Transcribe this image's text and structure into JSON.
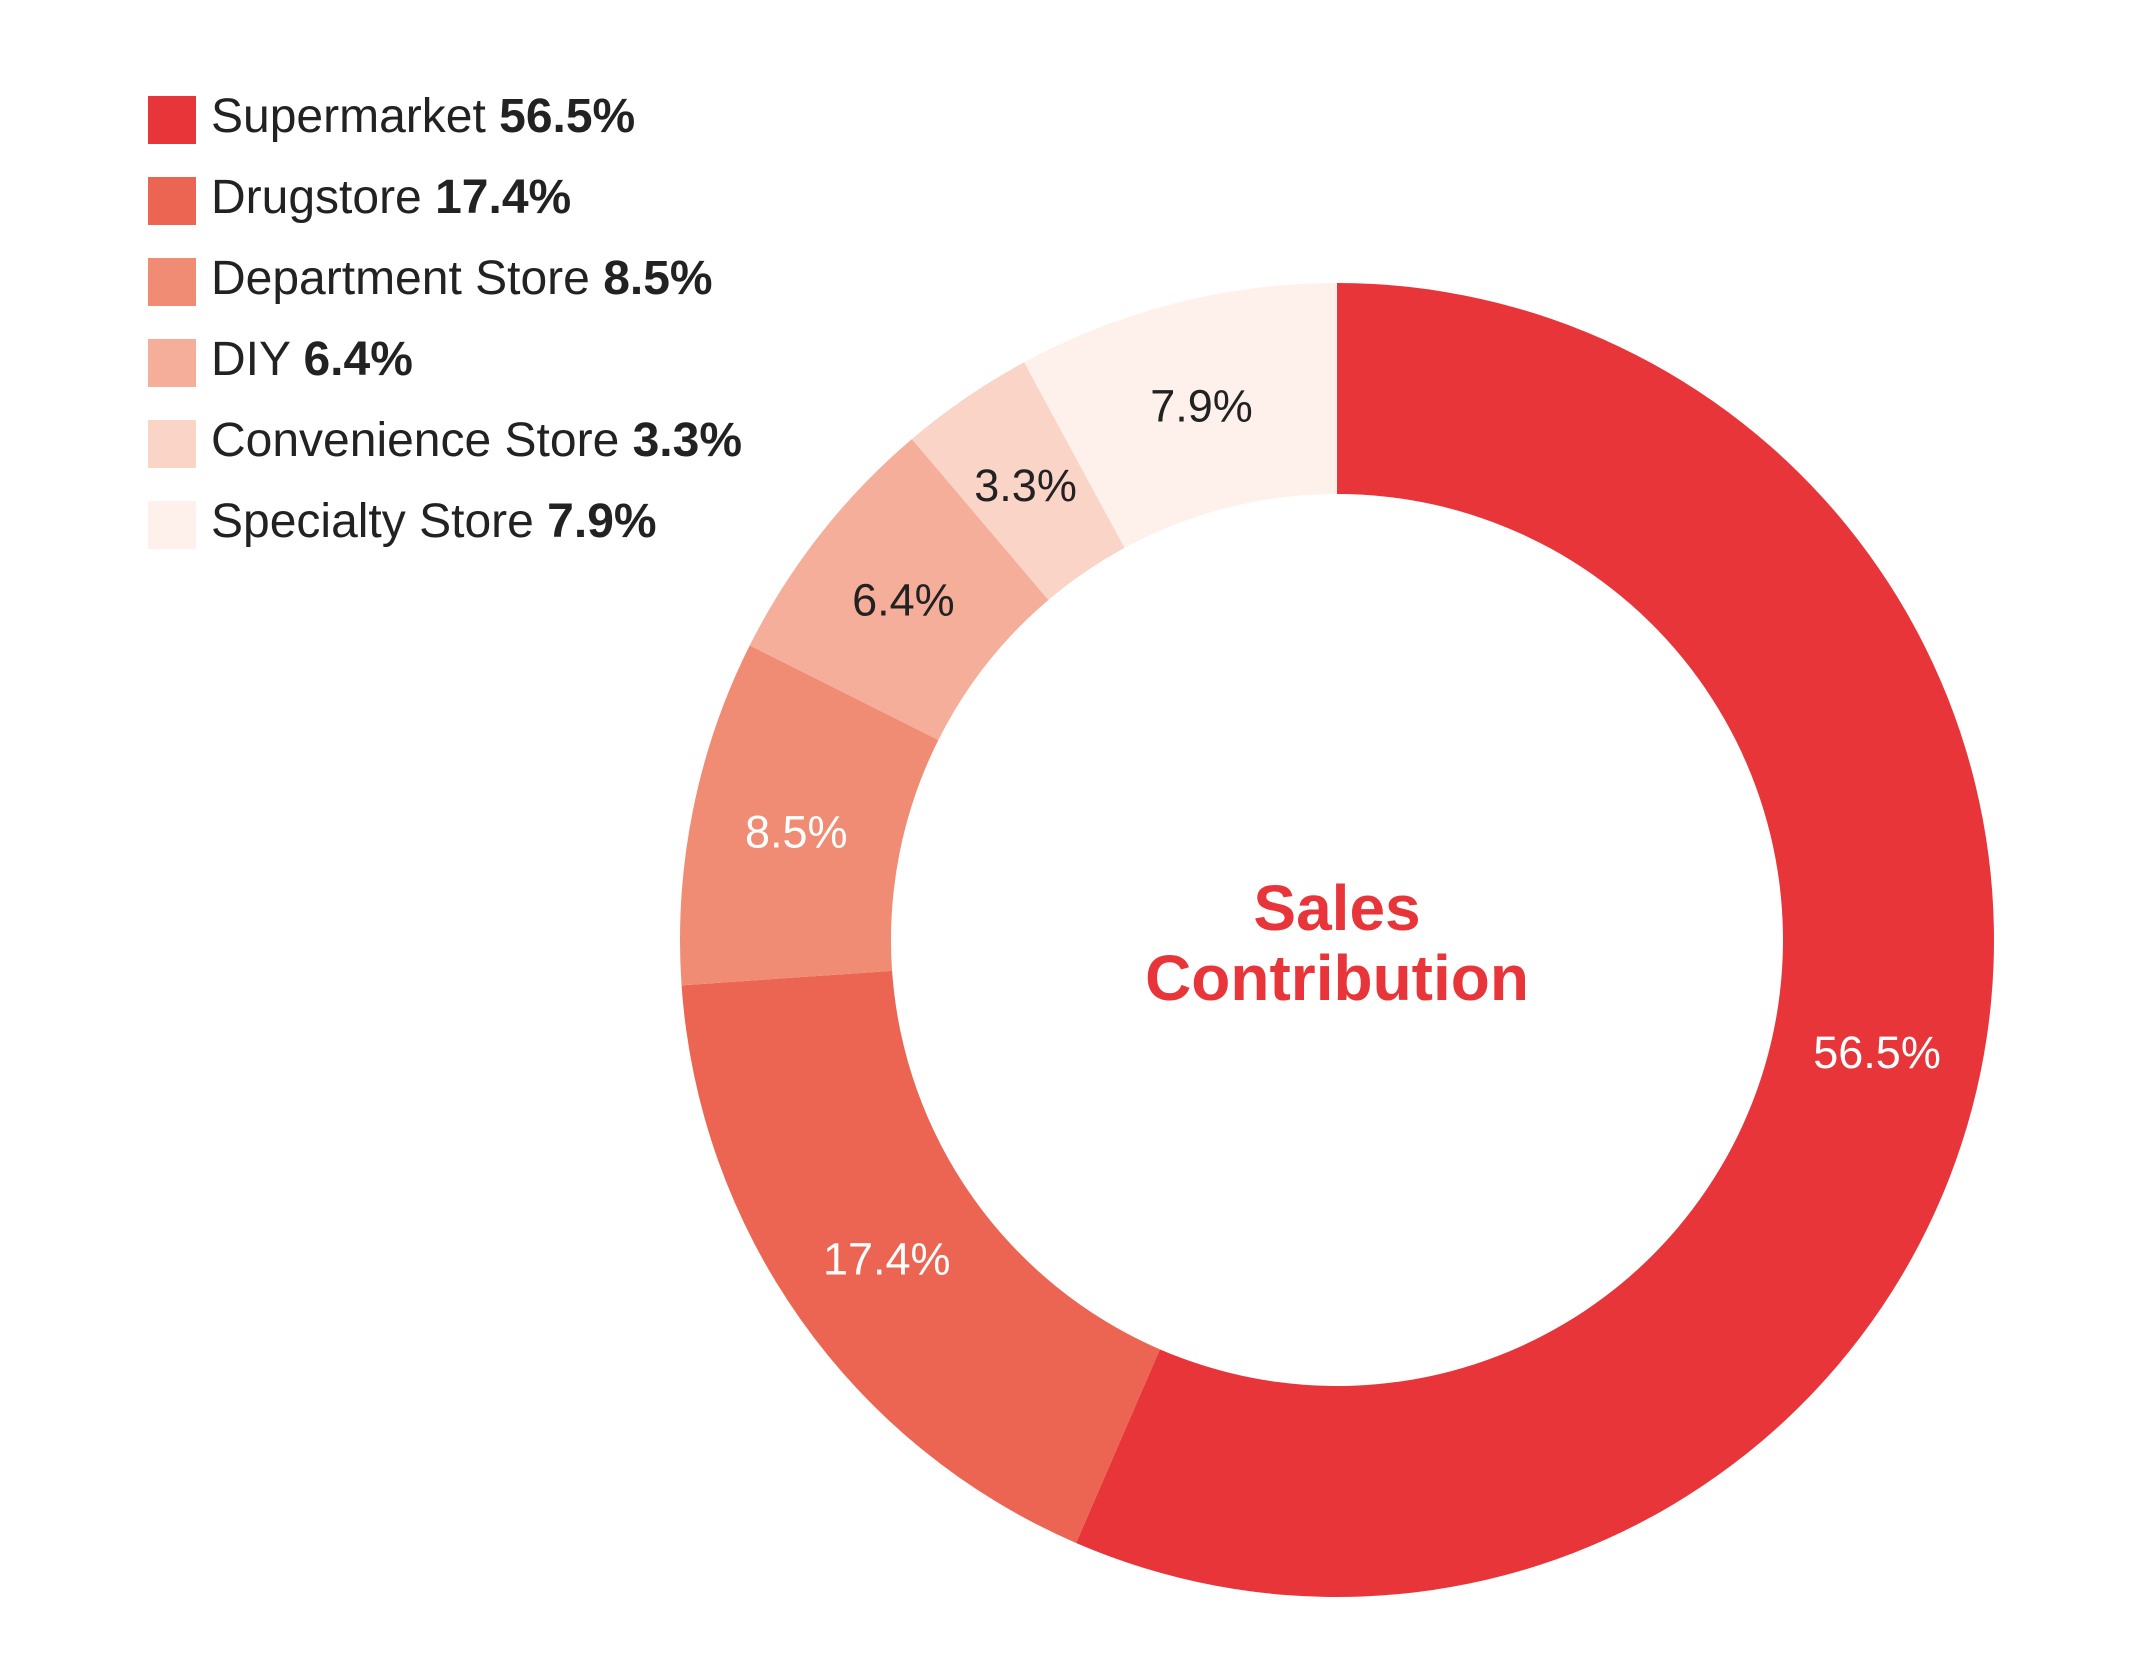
{
  "chart_data": {
    "type": "pie",
    "donut": true,
    "center_title_lines": [
      "Sales",
      "Contribution"
    ],
    "center_title_color": "#E8353A",
    "categories": [
      "Supermarket",
      "Drugstore",
      "Department Store",
      "DIY",
      "Convenience Store",
      "Specialty Store"
    ],
    "values": [
      56.5,
      17.4,
      8.5,
      6.4,
      3.3,
      7.9
    ],
    "value_labels": [
      "56.5%",
      "17.4%",
      "8.5%",
      "6.4%",
      "3.3%",
      "7.9%"
    ],
    "colors": [
      "#E8353A",
      "#EC6553",
      "#F18C74",
      "#F5AE99",
      "#FAD4C7",
      "#FEF1EC"
    ],
    "label_colors": [
      "#ffffff",
      "#ffffff",
      "#ffffff",
      "#222222",
      "#222222",
      "#222222"
    ],
    "legend_position": "top-left",
    "start_angle_deg": 0,
    "direction": "clockwise"
  }
}
